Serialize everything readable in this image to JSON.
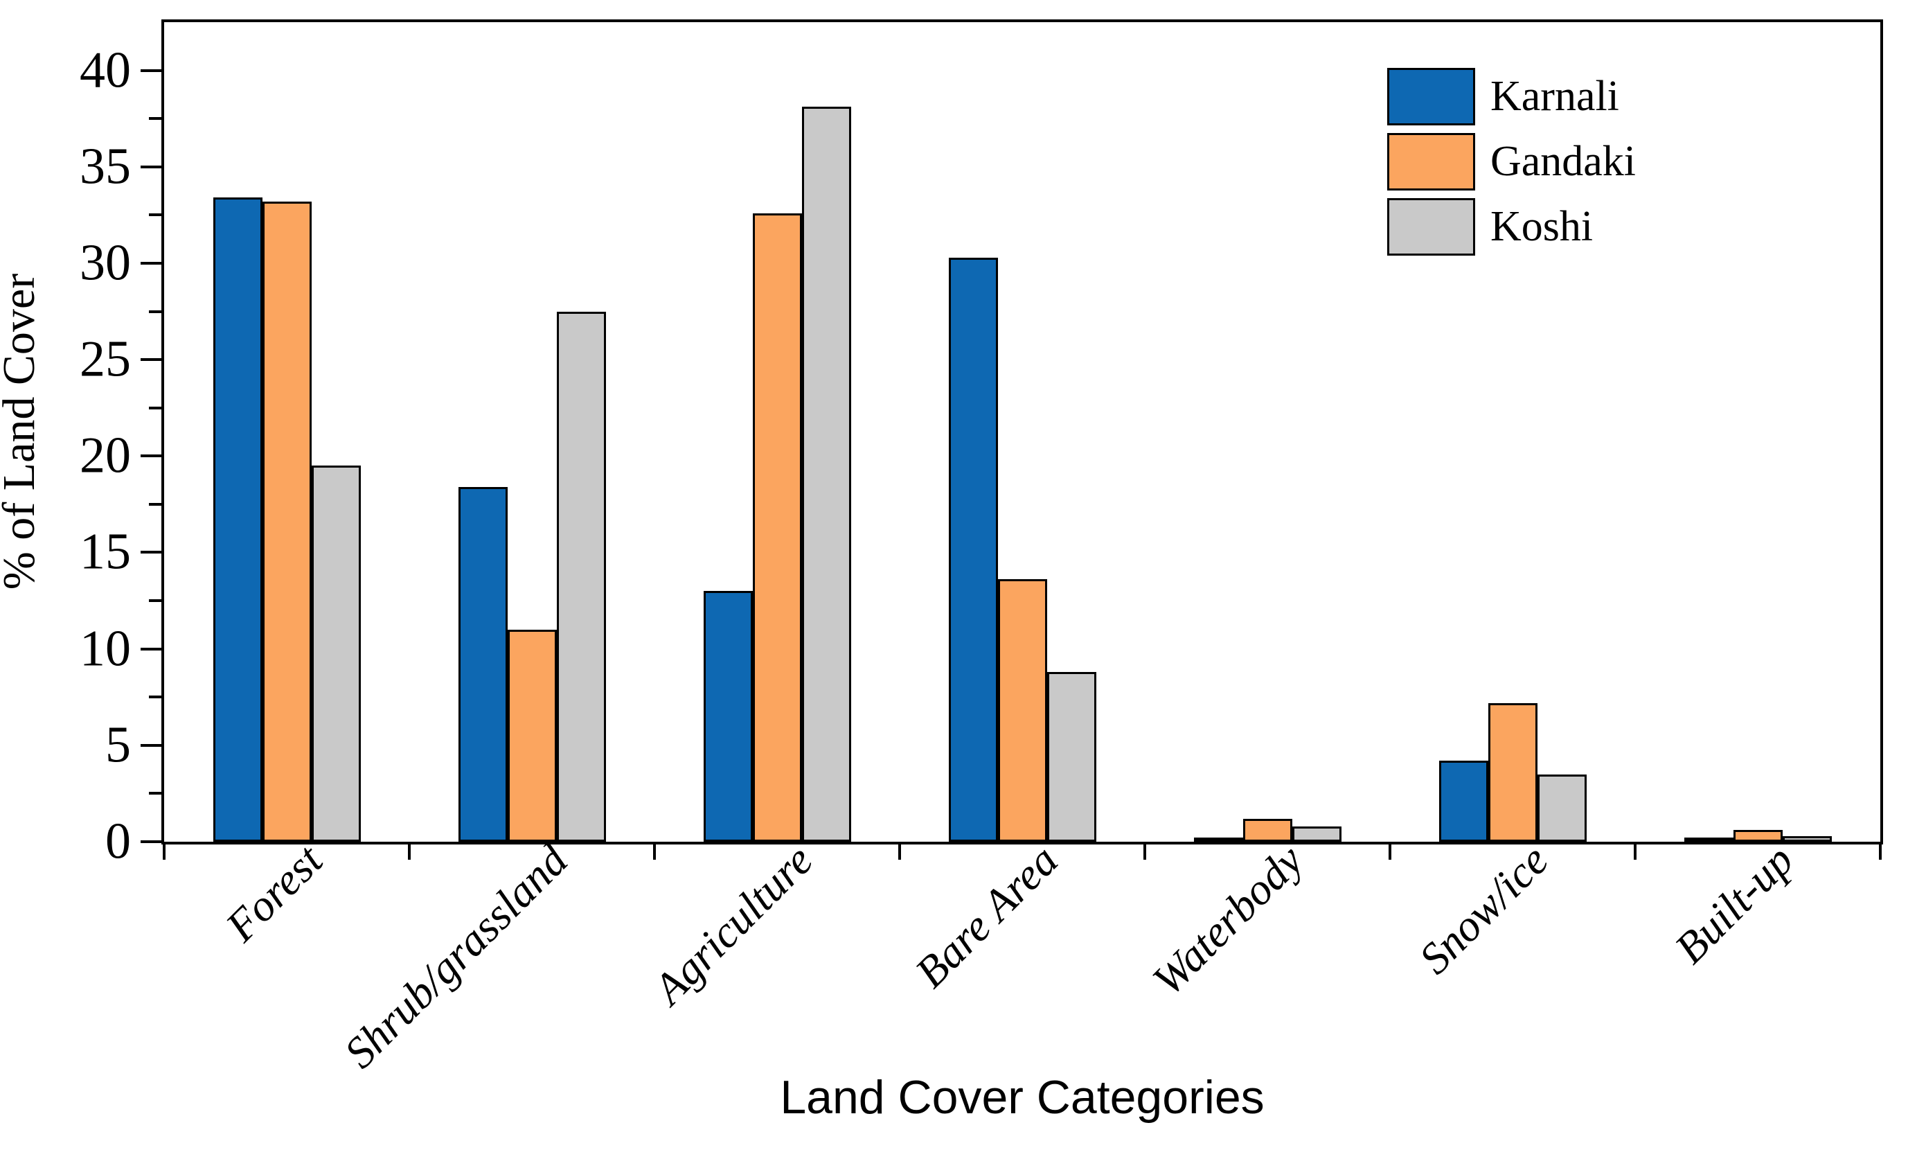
{
  "figure": {
    "y_axis_title": "% of Land Cover",
    "x_axis_title": "Land Cover Categories"
  },
  "legend": {
    "position": "top-right",
    "items": [
      {
        "label": "Karnali",
        "color": "#0e68b2"
      },
      {
        "label": "Gandaki",
        "color": "#fba55f"
      },
      {
        "label": "Koshi",
        "color": "#c9c9c9"
      }
    ]
  },
  "chart_data": {
    "type": "bar",
    "title": "",
    "xlabel": "Land Cover Categories",
    "ylabel": "% of Land Cover",
    "categories": [
      "Forest",
      "Shrub/grassland",
      "Agriculture",
      "Bare Area",
      "Waterbody",
      "Snow/ice",
      "Built-up"
    ],
    "series": [
      {
        "name": "Karnali",
        "color": "#0e68b2",
        "values": [
          33.4,
          18.4,
          13.0,
          30.3,
          0.2,
          4.2,
          0.1
        ]
      },
      {
        "name": "Gandaki",
        "color": "#fba55f",
        "values": [
          33.2,
          11.0,
          32.6,
          13.6,
          1.2,
          7.2,
          0.6
        ]
      },
      {
        "name": "Koshi",
        "color": "#c9c9c9",
        "values": [
          19.5,
          27.5,
          38.1,
          8.8,
          0.8,
          3.5,
          0.3
        ]
      }
    ],
    "ylim": [
      0,
      42.5
    ],
    "yticks_major": [
      0,
      5,
      10,
      15,
      20,
      25,
      30,
      35,
      40
    ],
    "ytick_minor_step": 2.5,
    "bar_edge_color": "#000000",
    "grid": false,
    "legend_position": "top-right"
  }
}
